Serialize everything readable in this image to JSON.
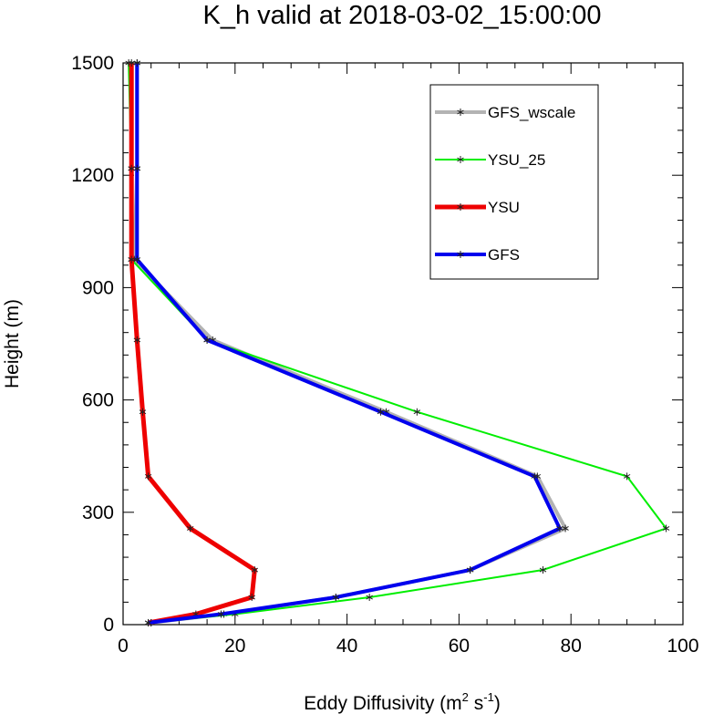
{
  "chart_data": {
    "type": "line",
    "title": "K_h valid at 2018-03-02_15:00:00",
    "xlabel": "Eddy Diffusivity (m",
    "xlabel_sup1": "2",
    "xlabel_mid": " s",
    "xlabel_sup2": "-1",
    "xlabel_end": ")",
    "ylabel": "Height (m)",
    "xlim": [
      0,
      100
    ],
    "ylim": [
      0,
      1500
    ],
    "xticks": [
      0,
      20,
      40,
      60,
      80,
      100
    ],
    "yticks": [
      0,
      300,
      600,
      900,
      1200,
      1500
    ],
    "legend_position": "top-right",
    "marker": "asterisk",
    "series": [
      {
        "name": "GFS_wscale",
        "color": "#b3b3b3",
        "width": 4,
        "points": [
          [
            5,
            5
          ],
          [
            18,
            28
          ],
          [
            38,
            73
          ],
          [
            62,
            146
          ],
          [
            79,
            257
          ],
          [
            74,
            396
          ],
          [
            47,
            568
          ],
          [
            16,
            760
          ],
          [
            2,
            975
          ],
          [
            2.5,
            1218
          ],
          [
            2.5,
            1500
          ]
        ]
      },
      {
        "name": "YSU_25",
        "color": "#00ee00",
        "width": 2,
        "points": [
          [
            5,
            5
          ],
          [
            20,
            28
          ],
          [
            44,
            73
          ],
          [
            75,
            146
          ],
          [
            97,
            257
          ],
          [
            90,
            396
          ],
          [
            52.5,
            568
          ],
          [
            15,
            760
          ],
          [
            1.5,
            975
          ],
          [
            1.5,
            1218
          ],
          [
            1,
            1500
          ]
        ]
      },
      {
        "name": "YSU",
        "color": "#ee0000",
        "width": 5,
        "points": [
          [
            4.5,
            5
          ],
          [
            13,
            28
          ],
          [
            23,
            73
          ],
          [
            23.5,
            146
          ],
          [
            12,
            257
          ],
          [
            4.5,
            396
          ],
          [
            3.5,
            568
          ],
          [
            2.5,
            760
          ],
          [
            1.5,
            975
          ],
          [
            1.5,
            1218
          ],
          [
            1.5,
            1500
          ]
        ]
      },
      {
        "name": "GFS",
        "color": "#0000ee",
        "width": 4,
        "points": [
          [
            4.5,
            5
          ],
          [
            17.5,
            28
          ],
          [
            38,
            73
          ],
          [
            62,
            146
          ],
          [
            78,
            257
          ],
          [
            73.5,
            396
          ],
          [
            46,
            568
          ],
          [
            15,
            760
          ],
          [
            2.5,
            975
          ],
          [
            2.5,
            1218
          ],
          [
            2.5,
            1500
          ]
        ]
      }
    ]
  }
}
